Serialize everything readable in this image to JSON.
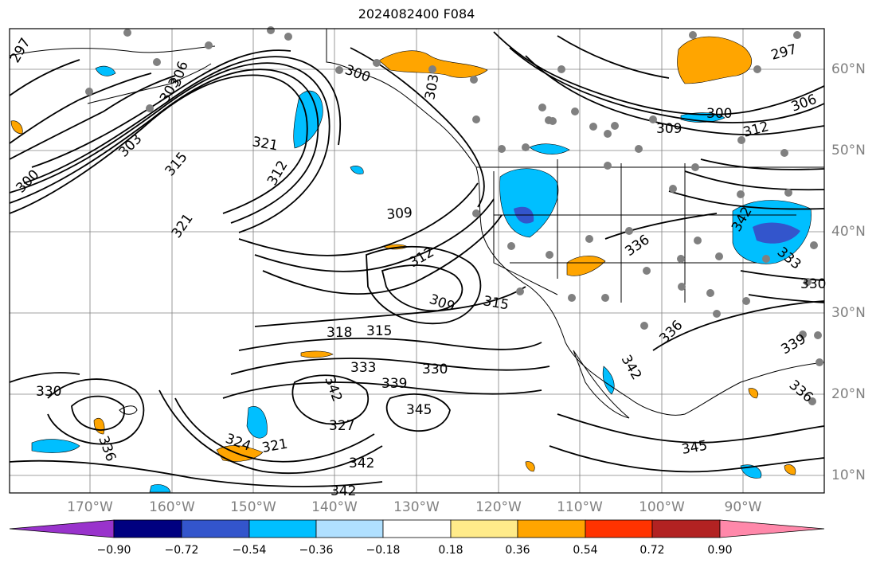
{
  "title": "2024082400 F084",
  "lat_labels": [
    "60°N",
    "50°N",
    "40°N",
    "30°N",
    "20°N",
    "10°N"
  ],
  "lon_labels": [
    "170°W",
    "160°W",
    "150°W",
    "140°W",
    "130°W",
    "120°W",
    "110°W",
    "100°W",
    "90°W"
  ],
  "colorbar": {
    "ticks": [
      "−0.90",
      "−0.72",
      "−0.54",
      "−0.36",
      "−0.18",
      "0.18",
      "0.36",
      "0.54",
      "0.72",
      "0.90"
    ],
    "colors": [
      "#9933cc",
      "#000080",
      "#3355cc",
      "#00bfff",
      "#b0e0ff",
      "#ffffff",
      "#ffeb8a",
      "#ffa500",
      "#ff3300",
      "#b22222",
      "#ff88aa"
    ]
  },
  "contour_labels": [
    "297",
    "303",
    "300",
    "303",
    "306",
    "315",
    "300",
    "321",
    "312",
    "321",
    "309",
    "303",
    "300",
    "309",
    "312",
    "306",
    "297",
    "312",
    "309",
    "315",
    "342",
    "336",
    "333",
    "330",
    "318",
    "315",
    "333",
    "330",
    "339",
    "342",
    "345",
    "324",
    "327",
    "321",
    "330",
    "342",
    "342",
    "336",
    "336",
    "345",
    "339",
    "342",
    "336"
  ],
  "colors": {
    "positive_fill": "#ffa500",
    "negative_fill": "#00bfff",
    "strong_negative_fill": "#3355cc",
    "land_line": "#000000",
    "grid": "#808080",
    "station_dot": "#808080"
  }
}
